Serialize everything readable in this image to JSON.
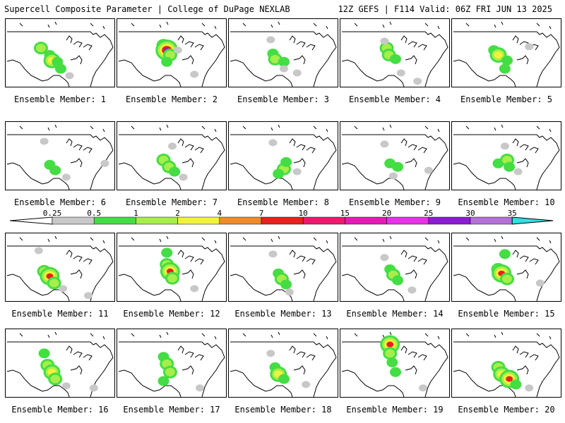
{
  "header": {
    "title_left": "Supercell Composite Parameter | College of DuPage NEXLAB",
    "title_right": "12Z GEFS | F114 Valid: 06Z FRI JUN 13 2025"
  },
  "panels": [
    {
      "label": "Ensemble Member: 1",
      "cells": [
        [
          0.32,
          0.42,
          2
        ],
        [
          0.4,
          0.52,
          1
        ],
        [
          0.42,
          0.6,
          3
        ],
        [
          0.47,
          0.62,
          1
        ],
        [
          0.5,
          0.72,
          1
        ],
        [
          0.58,
          0.82,
          0
        ]
      ]
    },
    {
      "label": "Ensemble Member: 2",
      "cells": [
        [
          0.42,
          0.38,
          2
        ],
        [
          0.45,
          0.45,
          5
        ],
        [
          0.48,
          0.52,
          2
        ],
        [
          0.45,
          0.62,
          1
        ],
        [
          0.55,
          0.45,
          0
        ],
        [
          0.7,
          0.8,
          0
        ]
      ]
    },
    {
      "label": "Ensemble Member: 3",
      "cells": [
        [
          0.4,
          0.5,
          1
        ],
        [
          0.42,
          0.58,
          2
        ],
        [
          0.5,
          0.62,
          1
        ],
        [
          0.38,
          0.3,
          0
        ],
        [
          0.5,
          0.72,
          0
        ],
        [
          0.62,
          0.78,
          0
        ]
      ]
    },
    {
      "label": "Ensemble Member: 4",
      "cells": [
        [
          0.42,
          0.42,
          2
        ],
        [
          0.44,
          0.52,
          2
        ],
        [
          0.5,
          0.58,
          1
        ],
        [
          0.4,
          0.32,
          0
        ],
        [
          0.55,
          0.78,
          0
        ],
        [
          0.7,
          0.9,
          0
        ]
      ]
    },
    {
      "label": "Ensemble Member: 5",
      "cells": [
        [
          0.38,
          0.45,
          1
        ],
        [
          0.42,
          0.52,
          3
        ],
        [
          0.5,
          0.6,
          1
        ],
        [
          0.48,
          0.72,
          1
        ],
        [
          0.7,
          0.4,
          0
        ]
      ]
    },
    {
      "label": "Ensemble Member: 6",
      "cells": [
        [
          0.4,
          0.62,
          1
        ],
        [
          0.45,
          0.7,
          1
        ],
        [
          0.55,
          0.8,
          0
        ],
        [
          0.35,
          0.28,
          0
        ],
        [
          0.9,
          0.6,
          0
        ]
      ]
    },
    {
      "label": "Ensemble Member: 7",
      "cells": [
        [
          0.42,
          0.55,
          2
        ],
        [
          0.47,
          0.65,
          2
        ],
        [
          0.52,
          0.72,
          1
        ],
        [
          0.5,
          0.35,
          0
        ],
        [
          0.6,
          0.8,
          0
        ]
      ]
    },
    {
      "label": "Ensemble Member: 8",
      "cells": [
        [
          0.5,
          0.68,
          2
        ],
        [
          0.52,
          0.58,
          1
        ],
        [
          0.45,
          0.75,
          1
        ],
        [
          0.4,
          0.3,
          0
        ],
        [
          0.62,
          0.72,
          0
        ]
      ]
    },
    {
      "label": "Ensemble Member: 9",
      "cells": [
        [
          0.45,
          0.6,
          1
        ],
        [
          0.52,
          0.65,
          1
        ],
        [
          0.48,
          0.78,
          0
        ],
        [
          0.4,
          0.32,
          0
        ],
        [
          0.8,
          0.7,
          0
        ]
      ]
    },
    {
      "label": "Ensemble Member: 10",
      "cells": [
        [
          0.42,
          0.6,
          1
        ],
        [
          0.5,
          0.55,
          2
        ],
        [
          0.52,
          0.65,
          1
        ],
        [
          0.48,
          0.35,
          0
        ],
        [
          0.6,
          0.72,
          0
        ]
      ]
    },
    {
      "label": "Ensemble Member: 11",
      "cells": [
        [
          0.35,
          0.55,
          2
        ],
        [
          0.4,
          0.62,
          4
        ],
        [
          0.44,
          0.72,
          2
        ],
        [
          0.3,
          0.25,
          0
        ],
        [
          0.52,
          0.8,
          0
        ],
        [
          0.75,
          0.9,
          0
        ]
      ]
    },
    {
      "label": "Ensemble Member: 12",
      "cells": [
        [
          0.45,
          0.45,
          2
        ],
        [
          0.48,
          0.55,
          4
        ],
        [
          0.5,
          0.65,
          2
        ],
        [
          0.45,
          0.28,
          1
        ],
        [
          0.7,
          0.8,
          0
        ]
      ]
    },
    {
      "label": "Ensemble Member: 13",
      "cells": [
        [
          0.45,
          0.58,
          1
        ],
        [
          0.48,
          0.66,
          2
        ],
        [
          0.52,
          0.74,
          1
        ],
        [
          0.4,
          0.3,
          0
        ],
        [
          0.55,
          0.85,
          0
        ]
      ]
    },
    {
      "label": "Ensemble Member: 14",
      "cells": [
        [
          0.45,
          0.52,
          1
        ],
        [
          0.48,
          0.6,
          2
        ],
        [
          0.52,
          0.68,
          1
        ],
        [
          0.4,
          0.35,
          0
        ],
        [
          0.65,
          0.82,
          0
        ]
      ]
    },
    {
      "label": "Ensemble Member: 15",
      "cells": [
        [
          0.42,
          0.52,
          2
        ],
        [
          0.45,
          0.58,
          4
        ],
        [
          0.5,
          0.66,
          2
        ],
        [
          0.48,
          0.3,
          1
        ],
        [
          0.8,
          0.72,
          0
        ]
      ]
    },
    {
      "label": "Ensemble Member: 16",
      "cells": [
        [
          0.38,
          0.52,
          2
        ],
        [
          0.42,
          0.62,
          3
        ],
        [
          0.45,
          0.72,
          2
        ],
        [
          0.35,
          0.35,
          1
        ],
        [
          0.55,
          0.82,
          0
        ],
        [
          0.8,
          0.85,
          0
        ]
      ]
    },
    {
      "label": "Ensemble Member: 17",
      "cells": [
        [
          0.42,
          0.4,
          1
        ],
        [
          0.45,
          0.5,
          2
        ],
        [
          0.48,
          0.62,
          2
        ],
        [
          0.42,
          0.75,
          1
        ],
        [
          0.75,
          0.85,
          0
        ]
      ]
    },
    {
      "label": "Ensemble Member: 18",
      "cells": [
        [
          0.42,
          0.55,
          1
        ],
        [
          0.45,
          0.65,
          3
        ],
        [
          0.5,
          0.72,
          1
        ],
        [
          0.38,
          0.35,
          0
        ],
        [
          0.7,
          0.8,
          0
        ]
      ]
    },
    {
      "label": "Ensemble Member: 19",
      "cells": [
        [
          0.45,
          0.22,
          4
        ],
        [
          0.45,
          0.35,
          2
        ],
        [
          0.47,
          0.48,
          1
        ],
        [
          0.5,
          0.62,
          1
        ],
        [
          0.75,
          0.85,
          0
        ]
      ]
    },
    {
      "label": "Ensemble Member: 20",
      "cells": [
        [
          0.42,
          0.55,
          2
        ],
        [
          0.45,
          0.65,
          3
        ],
        [
          0.52,
          0.72,
          4
        ],
        [
          0.58,
          0.8,
          1
        ],
        [
          0.7,
          0.85,
          0
        ]
      ]
    }
  ],
  "colorbar": {
    "ticks": [
      "0.25",
      "0.5",
      "1",
      "2",
      "4",
      "7",
      "10",
      "15",
      "20",
      "25",
      "30",
      "35"
    ],
    "colors": [
      "#c8c8c8",
      "#44dd44",
      "#a6ee4a",
      "#f2f23a",
      "#f08a2a",
      "#e8201e",
      "#f0186e",
      "#e61ab4",
      "#e832e8",
      "#8c1cd4",
      "#b470d6",
      "#33dde0"
    ]
  },
  "legend_colors": {
    "outline": "#000000",
    "map_bg": "#ffffff"
  }
}
